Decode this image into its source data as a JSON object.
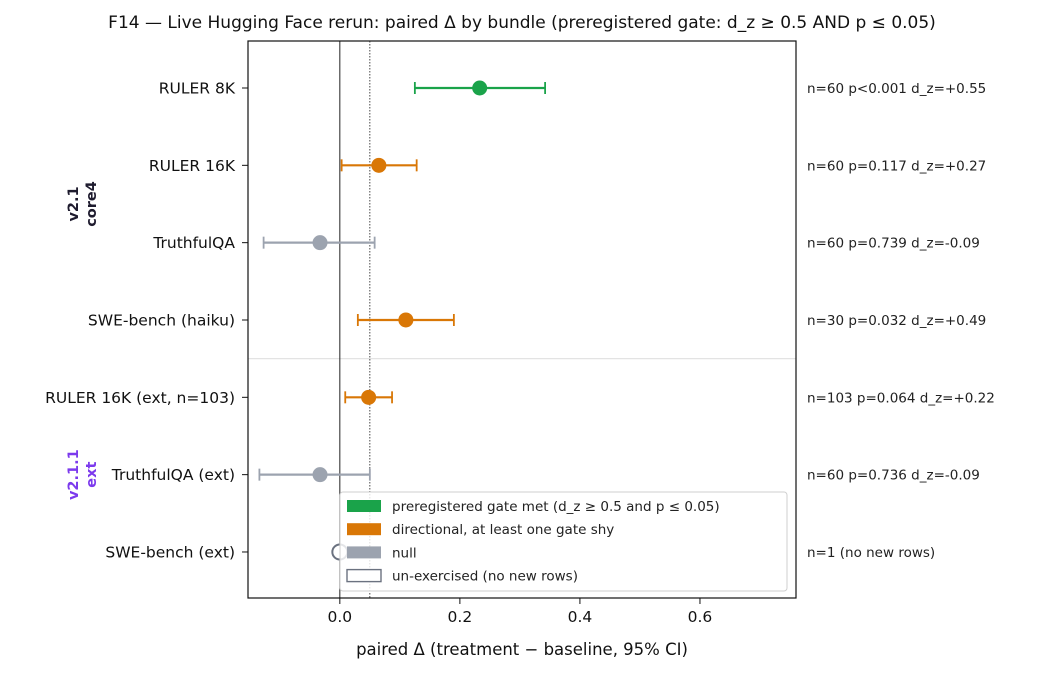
{
  "chart_data": {
    "type": "scatter",
    "title": "F14 — Live Hugging Face rerun: paired Δ by bundle (preregistered gate: d_z ≥ 0.5 AND p ≤ 0.05)",
    "xlabel": "paired Δ (treatment − baseline, 95% CI)",
    "ylabel": "",
    "xlim": [
      -0.153,
      0.76
    ],
    "xticks": [
      "0.0",
      "0.2",
      "0.4",
      "0.6"
    ],
    "xtick_values": [
      0.0,
      0.2,
      0.4,
      0.6
    ],
    "reference_lines": [
      0.0,
      0.05
    ],
    "grid": false,
    "legend_position": "lower-right",
    "colors": {
      "gate_met": "#1aa34a",
      "directional": "#d97706",
      "null": "#9ca3af",
      "unexercised": "#6b7280",
      "group_v21": "#1e1b2e",
      "group_v211": "#7c3aed"
    },
    "groups": [
      {
        "label_line1": "v2.1",
        "label_line2": "core4",
        "color": "#1e1b2e",
        "rows": [
          0,
          1,
          2,
          3
        ]
      },
      {
        "label_line1": "v2.1.1",
        "label_line2": "ext",
        "color": "#7c3aed",
        "rows": [
          4,
          5,
          6
        ]
      }
    ],
    "rows": [
      {
        "label": "RULER 8K",
        "delta": 0.233,
        "ci_low": 0.125,
        "ci_high": 0.342,
        "status": "gate_met",
        "stat": "n=60  p<0.001  d_z=+0.55"
      },
      {
        "label": "RULER 16K",
        "delta": 0.065,
        "ci_low": 0.003,
        "ci_high": 0.128,
        "status": "directional",
        "stat": "n=60  p=0.117  d_z=+0.27"
      },
      {
        "label": "TruthfulQA",
        "delta": -0.033,
        "ci_low": -0.127,
        "ci_high": 0.058,
        "status": "null",
        "stat": "n=60  p=0.739  d_z=-0.09"
      },
      {
        "label": "SWE-bench (haiku)",
        "delta": 0.11,
        "ci_low": 0.03,
        "ci_high": 0.19,
        "status": "directional",
        "stat": "n=30  p=0.032  d_z=+0.49"
      },
      {
        "label": "RULER 16K (ext, n=103)",
        "delta": 0.048,
        "ci_low": 0.009,
        "ci_high": 0.087,
        "status": "directional",
        "stat": "n=103  p=0.064  d_z=+0.22"
      },
      {
        "label": "TruthfulQA (ext)",
        "delta": -0.033,
        "ci_low": -0.134,
        "ci_high": 0.05,
        "status": "null",
        "stat": "n=60  p=0.736  d_z=-0.09"
      },
      {
        "label": "SWE-bench (ext)",
        "delta": 0.0,
        "ci_low": null,
        "ci_high": null,
        "status": "unexercised",
        "stat": "n=1  (no new rows)"
      }
    ],
    "legend": [
      {
        "label": "preregistered gate met (d_z ≥ 0.5 and p ≤ 0.05)",
        "status": "gate_met"
      },
      {
        "label": "directional, at least one gate shy",
        "status": "directional"
      },
      {
        "label": "null",
        "status": "null"
      },
      {
        "label": "un-exercised (no new rows)",
        "status": "unexercised"
      }
    ]
  }
}
